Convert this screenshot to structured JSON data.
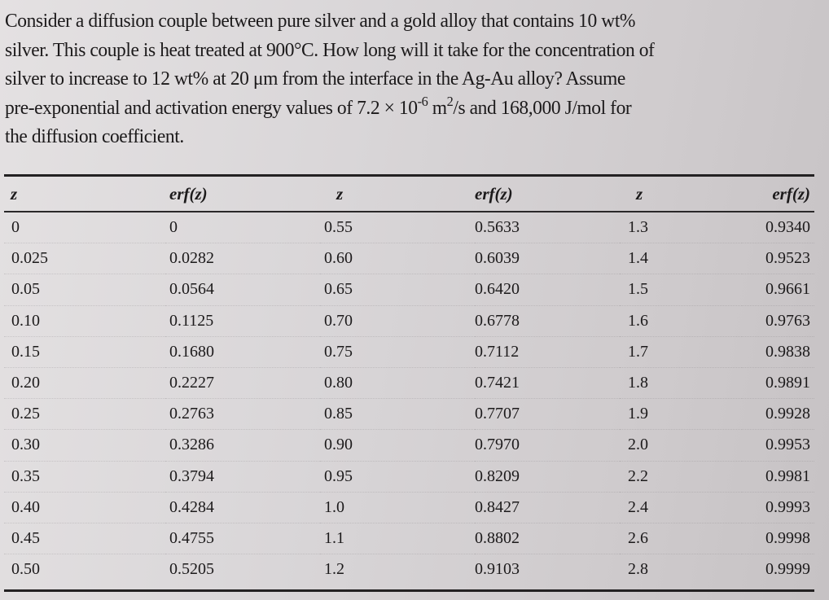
{
  "problem": {
    "lines": [
      "Consider a diffusion couple between pure silver and a gold alloy that contains 10 wt%",
      "silver.  This couple is heat treated at 900°C. How long will it take for the concentration of",
      "silver to increase to 12 wt% at 20 μm from the interface in the Ag-Au alloy?  Assume",
      "pre-exponential and activation energy values of 7.2 × 10",
      "the diffusion coefficient."
    ],
    "line4_exp1": "-6",
    "line4_mid": " m",
    "line4_exp2": "2",
    "line4_tail": "/s and 168,000 J/mol for"
  },
  "table": {
    "headers": [
      "z",
      "erf(z)",
      "z",
      "erf(z)",
      "z",
      "erf(z)"
    ],
    "rows": [
      [
        "0",
        "0",
        "0.55",
        "0.5633",
        "1.3",
        "0.9340"
      ],
      [
        "0.025",
        "0.0282",
        "0.60",
        "0.6039",
        "1.4",
        "0.9523"
      ],
      [
        "0.05",
        "0.0564",
        "0.65",
        "0.6420",
        "1.5",
        "0.9661"
      ],
      [
        "0.10",
        "0.1125",
        "0.70",
        "0.6778",
        "1.6",
        "0.9763"
      ],
      [
        "0.15",
        "0.1680",
        "0.75",
        "0.7112",
        "1.7",
        "0.9838"
      ],
      [
        "0.20",
        "0.2227",
        "0.80",
        "0.7421",
        "1.8",
        "0.9891"
      ],
      [
        "0.25",
        "0.2763",
        "0.85",
        "0.7707",
        "1.9",
        "0.9928"
      ],
      [
        "0.30",
        "0.3286",
        "0.90",
        "0.7970",
        "2.0",
        "0.9953"
      ],
      [
        "0.35",
        "0.3794",
        "0.95",
        "0.8209",
        "2.2",
        "0.9981"
      ],
      [
        "0.40",
        "0.4284",
        "1.0",
        "0.8427",
        "2.4",
        "0.9993"
      ],
      [
        "0.45",
        "0.4755",
        "1.1",
        "0.8802",
        "2.6",
        "0.9998"
      ],
      [
        "0.50",
        "0.5205",
        "1.2",
        "0.9103",
        "2.8",
        "0.9999"
      ]
    ]
  }
}
